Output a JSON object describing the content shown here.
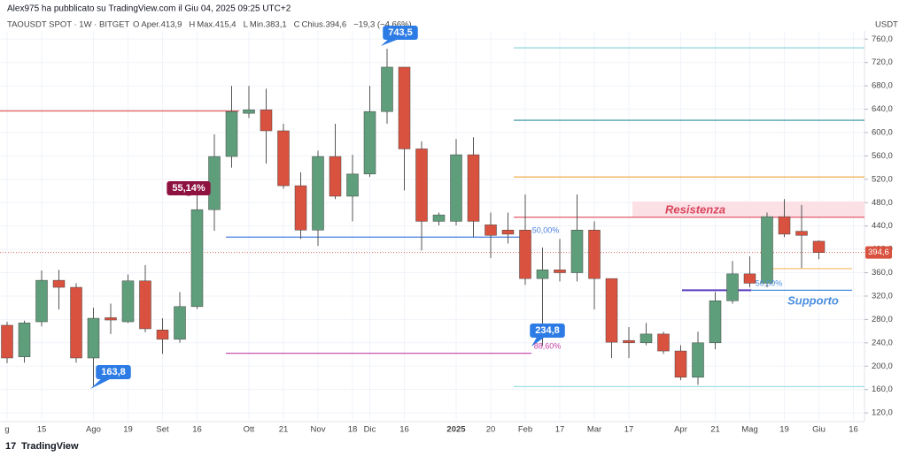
{
  "header": {
    "byline": "Alex975 ha pubblicato su TradingView.com il Giu 04, 2025 09:25 UTC+2",
    "symbol": "TAOUSDT SPOT · 1W · BITGET",
    "ohlc": [
      "O",
      "Aper.413,9",
      "H",
      "Max.415,4",
      "L",
      "Min.383,1",
      "C",
      "Chius.394,6",
      "−19,3 (−4,66%)"
    ]
  },
  "footer": {
    "brand": "TradingView"
  },
  "chart_data": {
    "type": "candlestick",
    "y_unit": "USDT",
    "grid": true,
    "up_color": "#5f9e7b",
    "down_color": "#d9513f",
    "categories": [
      "g",
      null,
      "15",
      null,
      null,
      "Ago",
      null,
      "19",
      null,
      "Set",
      null,
      "16",
      null,
      null,
      "Ott",
      null,
      "21",
      null,
      "Nov",
      null,
      "18",
      "Dic",
      null,
      "16",
      null,
      null,
      "2025",
      null,
      "20",
      null,
      "Feb",
      null,
      "17",
      null,
      "Mar",
      null,
      "17",
      null,
      null,
      "Apr",
      null,
      "21",
      null,
      "Mag",
      null,
      "19",
      null,
      "Giu",
      null,
      "16"
    ],
    "open": [
      270,
      216,
      276,
      347,
      335,
      214,
      283,
      276,
      346,
      262,
      246,
      302,
      468,
      559,
      633,
      639,
      603,
      509,
      433,
      559,
      491,
      529,
      636,
      712,
      572,
      448,
      448,
      562,
      442,
      433,
      433,
      350,
      365,
      360,
      433,
      350,
      244,
      240,
      255,
      226,
      181,
      240,
      312,
      358,
      342,
      456,
      431,
      413.9,
      null,
      null
    ],
    "high": [
      276,
      278,
      364,
      365,
      342,
      300,
      307,
      357,
      373,
      282,
      327,
      509,
      597,
      680,
      680,
      675,
      615,
      532,
      569,
      615,
      562,
      680,
      743.5,
      712,
      585,
      463,
      589,
      592,
      463,
      463,
      494,
      403,
      418,
      494,
      448,
      350,
      267,
      274,
      259,
      236,
      259,
      327,
      380,
      388,
      463,
      486,
      476,
      415.4,
      null,
      null
    ],
    "low": [
      205,
      206,
      268,
      297,
      206,
      163.8,
      255,
      274,
      258,
      221,
      240,
      298,
      432,
      540,
      625,
      547,
      504,
      418,
      406,
      486,
      448,
      524,
      615,
      501,
      398,
      441,
      441,
      421,
      385,
      410,
      339,
      234.8,
      345,
      345,
      297,
      214,
      214,
      236,
      221,
      176,
      168,
      229,
      307,
      335,
      335,
      421,
      368,
      383.1,
      null,
      null
    ],
    "close": [
      214,
      274,
      347,
      335,
      214,
      282,
      279,
      346,
      264,
      246,
      302,
      468,
      559,
      636,
      639,
      603,
      509,
      433,
      559,
      491,
      529,
      636,
      712,
      572,
      448,
      459,
      562,
      448,
      424,
      426,
      350,
      365,
      360,
      433,
      350,
      241,
      240,
      255,
      226,
      181,
      240,
      312,
      358,
      342,
      456,
      426,
      424,
      394.6,
      null,
      null
    ],
    "last_price": 394.6,
    "last_price_label": "394,6",
    "ylim": [
      105,
      774
    ],
    "yticks": [
      {
        "value": 120,
        "label": "120,0"
      },
      {
        "value": 160,
        "label": "160,0"
      },
      {
        "value": 200,
        "label": "200,0"
      },
      {
        "value": 240,
        "label": "240,0"
      },
      {
        "value": 280,
        "label": "280,0"
      },
      {
        "value": 320,
        "label": "320,0"
      },
      {
        "value": 360,
        "label": "360,0"
      },
      {
        "value": 400,
        "label": "400,0"
      },
      {
        "value": 440,
        "label": "440,0"
      },
      {
        "value": 480,
        "label": "480,0"
      },
      {
        "value": 520,
        "label": "520,0"
      },
      {
        "value": 560,
        "label": "560,0"
      },
      {
        "value": 600,
        "label": "600,0"
      },
      {
        "value": 640,
        "label": "640,0"
      },
      {
        "value": 680,
        "label": "680,0"
      },
      {
        "value": 720,
        "label": "720,0"
      },
      {
        "value": 760,
        "label": "760,0"
      }
    ],
    "levels": [
      {
        "value": 637,
        "color": "#e05a5a"
      },
      {
        "value": 745,
        "color": "#8fd6dd"
      },
      {
        "value": 621,
        "color": "#2a8f9c"
      },
      {
        "value": 524,
        "color": "#f0a030"
      },
      {
        "value": 455,
        "color": "#e05a6a"
      },
      {
        "value": 421,
        "color": "#4a7fe0"
      },
      {
        "value": 222,
        "color": "#c43fa8"
      },
      {
        "value": 165,
        "color": "#9fe0e4"
      },
      {
        "value": 330,
        "color": "#5b3fc0"
      },
      {
        "value": 330,
        "color": "#4a8fe0"
      },
      {
        "value": 367,
        "color": "#f2c070"
      }
    ],
    "zone": [
      455,
      482
    ],
    "annotations": [
      "743,5",
      "163,8",
      "234,8",
      "55,14%",
      "50,00%",
      "88,60%",
      "50,00%",
      "Resistenza",
      "Supporto"
    ]
  }
}
